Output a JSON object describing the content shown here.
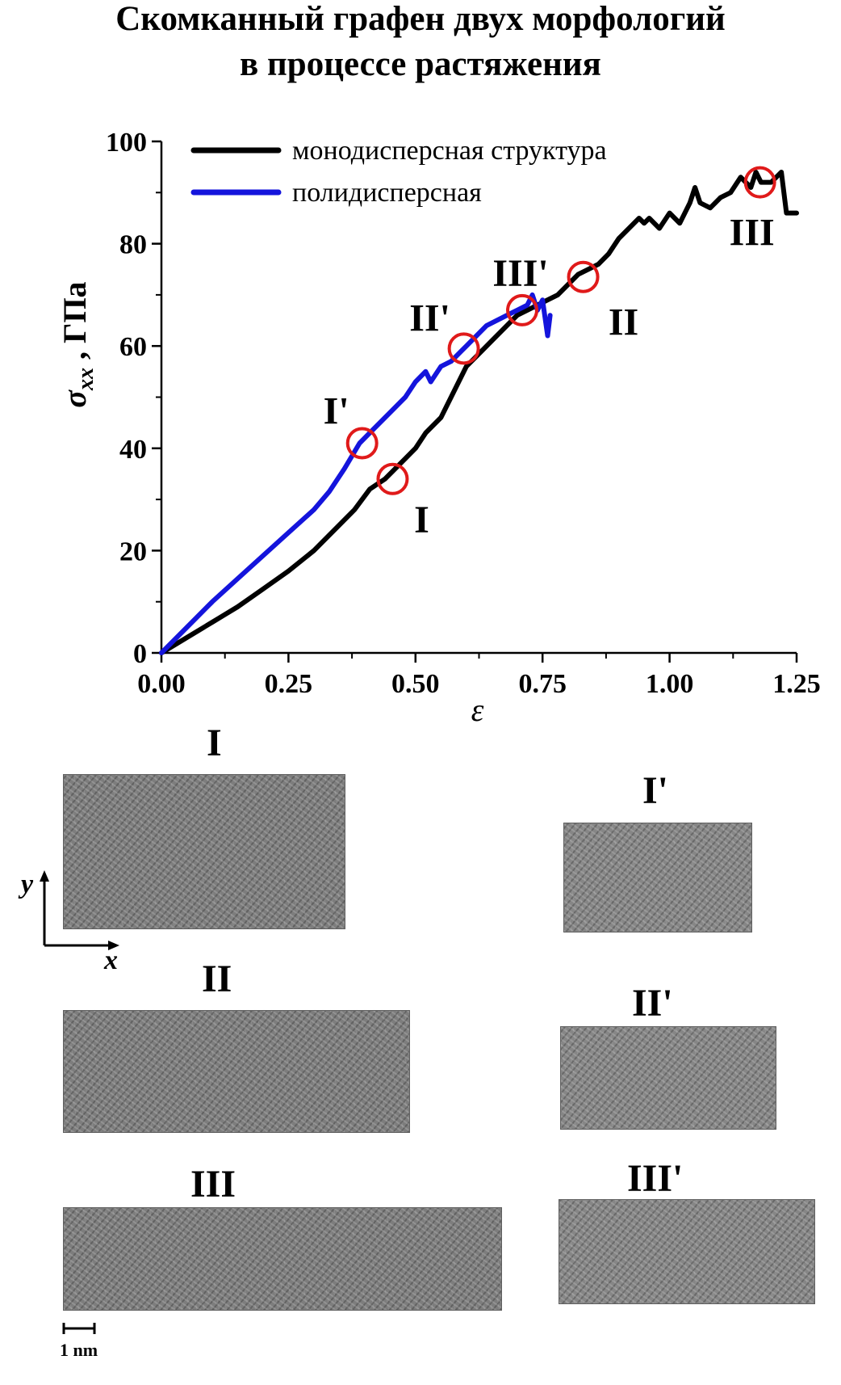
{
  "figure": {
    "title_line1": "Скомканный графен двух морфологий",
    "title_line2": "в процессе растяжения"
  },
  "chart_data": {
    "type": "line",
    "title": "",
    "xlabel": "ε",
    "ylabel": "σ",
    "ylabel_sub": "xx",
    "ylabel_unit": ", ГПа",
    "xlim": [
      0,
      1.25
    ],
    "ylim": [
      0,
      100
    ],
    "xticks": [
      "0.00",
      "0.25",
      "0.50",
      "0.75",
      "1.00",
      "1.25"
    ],
    "yticks": [
      "0",
      "20",
      "40",
      "60",
      "80",
      "100"
    ],
    "grid": false,
    "legend_position": "top-left",
    "series": [
      {
        "name": "монодисперсная структура",
        "color": "#000000",
        "x": [
          0,
          0.05,
          0.1,
          0.15,
          0.2,
          0.25,
          0.3,
          0.35,
          0.38,
          0.41,
          0.44,
          0.46,
          0.48,
          0.5,
          0.52,
          0.55,
          0.57,
          0.6,
          0.62,
          0.65,
          0.68,
          0.7,
          0.72,
          0.74,
          0.76,
          0.78,
          0.8,
          0.82,
          0.84,
          0.86,
          0.88,
          0.9,
          0.92,
          0.94,
          0.95,
          0.96,
          0.98,
          1.0,
          1.02,
          1.04,
          1.05,
          1.06,
          1.08,
          1.1,
          1.12,
          1.14,
          1.16,
          1.17,
          1.18,
          1.2,
          1.22,
          1.23,
          1.25
        ],
        "y": [
          0,
          3,
          6,
          9,
          12.5,
          16,
          20,
          25,
          28,
          32,
          34,
          36,
          38,
          40,
          43,
          46,
          50,
          56,
          58,
          61,
          64,
          66,
          67,
          68,
          69,
          70,
          72,
          74,
          75,
          76,
          78,
          81,
          83,
          85,
          84,
          85,
          83,
          86,
          84,
          88,
          91,
          88,
          87,
          89,
          90,
          93,
          91,
          94,
          92,
          92,
          94,
          86,
          86
        ]
      },
      {
        "name": "полидисперсная",
        "color": "#1414dc",
        "x": [
          0,
          0.05,
          0.1,
          0.15,
          0.2,
          0.25,
          0.3,
          0.33,
          0.36,
          0.39,
          0.41,
          0.43,
          0.45,
          0.48,
          0.5,
          0.52,
          0.53,
          0.55,
          0.57,
          0.59,
          0.6,
          0.62,
          0.64,
          0.66,
          0.68,
          0.7,
          0.72,
          0.73,
          0.74,
          0.75,
          0.76,
          0.765
        ],
        "y": [
          0,
          5,
          10,
          14.5,
          19,
          23.5,
          28,
          31.5,
          36,
          41,
          43,
          45,
          47,
          50,
          53,
          55,
          53,
          56,
          57,
          59,
          60,
          62,
          64,
          65,
          66,
          67,
          68,
          70,
          67,
          69,
          62,
          66
        ]
      }
    ],
    "markers": [
      {
        "label": "I",
        "x": 0.455,
        "y": 34
      },
      {
        "label": "I'",
        "x": 0.395,
        "y": 41
      },
      {
        "label": "II",
        "x": 0.83,
        "y": 73.5
      },
      {
        "label": "II'",
        "x": 0.595,
        "y": 59.5
      },
      {
        "label": "III",
        "x": 1.178,
        "y": 92
      },
      {
        "label": "III'",
        "x": 0.71,
        "y": 67
      }
    ],
    "marker_color": "#e01a1a"
  },
  "panels": {
    "mono": [
      {
        "label": "I"
      },
      {
        "label": "II"
      },
      {
        "label": "III"
      }
    ],
    "poly": [
      {
        "label": "I'"
      },
      {
        "label": "II'"
      },
      {
        "label": "III'"
      }
    ],
    "axes_x": "x",
    "axes_y": "y",
    "scale_bar": "1 nm"
  }
}
